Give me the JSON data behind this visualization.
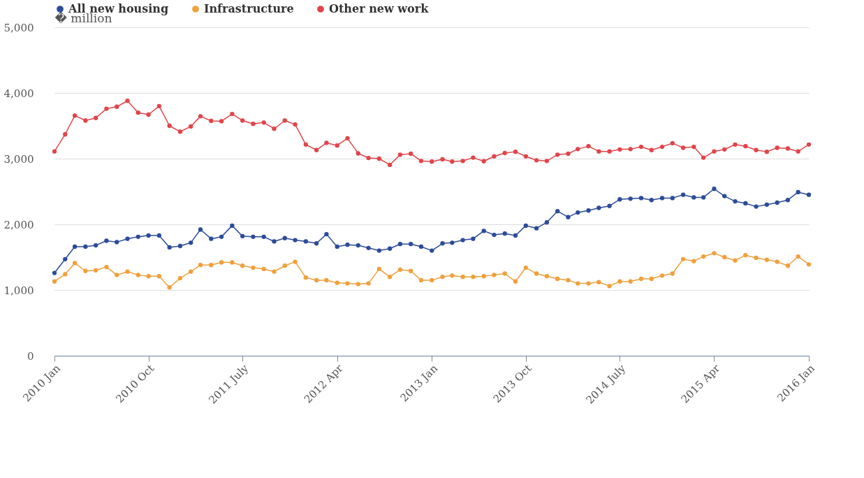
{
  "chart_data": {
    "type": "line",
    "ylabel": "� million",
    "legend": "top",
    "marker": "circle",
    "line_style": "solid",
    "grid": "y",
    "x": [
      "2010-01",
      "2010-02",
      "2010-03",
      "2010-04",
      "2010-05",
      "2010-06",
      "2010-07",
      "2010-08",
      "2010-09",
      "2010-10",
      "2010-11",
      "2010-12",
      "2011-01",
      "2011-02",
      "2011-03",
      "2011-04",
      "2011-05",
      "2011-06",
      "2011-07",
      "2011-08",
      "2011-09",
      "2011-10",
      "2011-11",
      "2011-12",
      "2012-01",
      "2012-02",
      "2012-03",
      "2012-04",
      "2012-05",
      "2012-06",
      "2012-07",
      "2012-08",
      "2012-09",
      "2012-10",
      "2012-11",
      "2012-12",
      "2013-01",
      "2013-02",
      "2013-03",
      "2013-04",
      "2013-05",
      "2013-06",
      "2013-07",
      "2013-08",
      "2013-09",
      "2013-10",
      "2013-11",
      "2013-12",
      "2014-01",
      "2014-02",
      "2014-03",
      "2014-04",
      "2014-05",
      "2014-06",
      "2014-07",
      "2014-08",
      "2014-09",
      "2014-10",
      "2014-11",
      "2014-12",
      "2015-01",
      "2015-02",
      "2015-03",
      "2015-04",
      "2015-05",
      "2015-06",
      "2015-07",
      "2015-08",
      "2015-09",
      "2015-10",
      "2015-11",
      "2015-12",
      "2016-01"
    ],
    "xlim": [
      "2010-01",
      "2016-01"
    ],
    "xticks": [
      {
        "value": "2010-01",
        "label": "2010 Jan"
      },
      {
        "value": "2010-10",
        "label": "2010 Oct"
      },
      {
        "value": "2011-07",
        "label": "2011 July"
      },
      {
        "value": "2012-04",
        "label": "2012 Apr"
      },
      {
        "value": "2013-01",
        "label": "2013 Jan"
      },
      {
        "value": "2013-10",
        "label": "2013 Oct"
      },
      {
        "value": "2014-07",
        "label": "2014 July"
      },
      {
        "value": "2015-04",
        "label": "2015 Apr"
      },
      {
        "value": "2016-01",
        "label": "2016 Jan"
      }
    ],
    "ylim": [
      0,
      5000
    ],
    "yticks": [
      0,
      {
        "value": 1000,
        "label": "1,000"
      },
      {
        "value": 2000,
        "label": "2,000"
      },
      {
        "value": 3000,
        "label": "3,000"
      },
      {
        "value": 4000,
        "label": "4,000"
      },
      {
        "value": 5000,
        "label": "5,000"
      }
    ],
    "series": [
      {
        "name": "All new housing",
        "color": "#2c4b9a",
        "values": [
          1260,
          1470,
          1660,
          1660,
          1680,
          1750,
          1730,
          1780,
          1810,
          1830,
          1830,
          1650,
          1670,
          1720,
          1920,
          1780,
          1810,
          1980,
          1820,
          1810,
          1810,
          1740,
          1790,
          1760,
          1740,
          1710,
          1850,
          1660,
          1690,
          1680,
          1640,
          1600,
          1630,
          1700,
          1700,
          1660,
          1600,
          1710,
          1720,
          1760,
          1780,
          1900,
          1840,
          1860,
          1830,
          1980,
          1940,
          2030,
          2200,
          2110,
          2180,
          2210,
          2250,
          2280,
          2380,
          2390,
          2400,
          2370,
          2400,
          2400,
          2450,
          2410,
          2410,
          2540,
          2430,
          2350,
          2320,
          2270,
          2300,
          2330,
          2370,
          2490,
          2450
        ]
      },
      {
        "name": "Infrastructure",
        "color": "#f0a03c",
        "values": [
          1130,
          1240,
          1410,
          1290,
          1300,
          1350,
          1230,
          1280,
          1230,
          1210,
          1210,
          1040,
          1180,
          1280,
          1380,
          1380,
          1420,
          1420,
          1370,
          1340,
          1320,
          1280,
          1370,
          1430,
          1190,
          1150,
          1150,
          1110,
          1100,
          1090,
          1100,
          1320,
          1200,
          1310,
          1290,
          1150,
          1150,
          1200,
          1220,
          1200,
          1200,
          1210,
          1230,
          1250,
          1130,
          1340,
          1250,
          1210,
          1170,
          1150,
          1100,
          1100,
          1120,
          1060,
          1130,
          1130,
          1170,
          1170,
          1220,
          1250,
          1470,
          1440,
          1510,
          1560,
          1500,
          1450,
          1530,
          1490,
          1460,
          1430,
          1370,
          1510,
          1390
        ]
      },
      {
        "name": "Other new work",
        "color": "#e0454a",
        "values": [
          3110,
          3370,
          3655,
          3580,
          3620,
          3760,
          3790,
          3880,
          3700,
          3670,
          3800,
          3500,
          3410,
          3490,
          3645,
          3575,
          3570,
          3680,
          3580,
          3530,
          3550,
          3455,
          3580,
          3520,
          3215,
          3130,
          3240,
          3200,
          3310,
          3080,
          3010,
          3000,
          2905,
          3060,
          3075,
          2965,
          2955,
          2990,
          2955,
          2965,
          3015,
          2960,
          3035,
          3085,
          3105,
          3035,
          2975,
          2965,
          3060,
          3075,
          3145,
          3190,
          3110,
          3110,
          3140,
          3145,
          3180,
          3130,
          3180,
          3235,
          3165,
          3180,
          3015,
          3110,
          3140,
          3215,
          3190,
          3130,
          3105,
          3165,
          3155,
          3110,
          3215
        ]
      }
    ]
  }
}
